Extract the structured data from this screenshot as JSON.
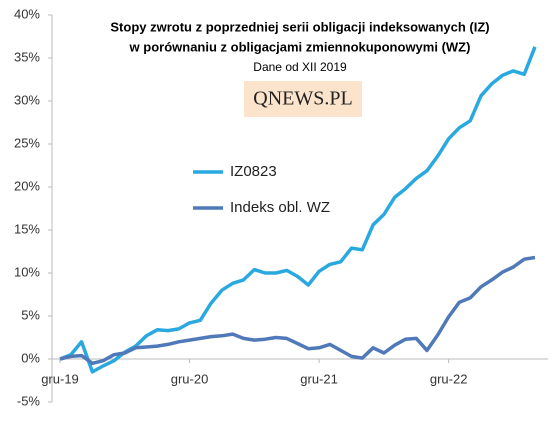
{
  "chart_data": {
    "type": "line",
    "title": [
      "Stopy zwrotu z poprzedniej serii obligacji indeksowanych (IZ)",
      "w porównaniu z obligacjami zmiennokuponowymi (WZ)"
    ],
    "subtitle": "Dane od XII 2019",
    "logo": "QNEWS.PL",
    "categories": [
      "gru-19",
      null,
      null,
      null,
      null,
      null,
      null,
      null,
      null,
      null,
      null,
      null,
      "gru-20",
      null,
      null,
      null,
      null,
      null,
      null,
      null,
      null,
      null,
      null,
      null,
      "gru-21",
      null,
      null,
      null,
      null,
      null,
      null,
      null,
      null,
      null,
      null,
      null,
      "gru-22",
      null,
      null,
      null,
      null,
      null,
      null,
      null,
      null
    ],
    "series": [
      {
        "name": "IZ0823",
        "color": "#29a9e0",
        "values": [
          0,
          0.5,
          2.0,
          -1.5,
          -0.8,
          -0.2,
          0.8,
          1.5,
          2.7,
          3.4,
          3.3,
          3.5,
          4.2,
          4.5,
          6.5,
          8.0,
          8.8,
          9.2,
          10.4,
          10.0,
          10.0,
          10.3,
          9.6,
          8.6,
          10.2,
          11.0,
          11.3,
          12.9,
          12.7,
          15.6,
          16.8,
          18.8,
          19.8,
          21.0,
          21.9,
          23.6,
          25.6,
          26.9,
          27.7,
          30.6,
          32.0,
          33.0,
          33.5,
          33.1,
          36.3
        ]
      },
      {
        "name": "Indeks obl. WZ",
        "color": "#4f79b8",
        "values": [
          0,
          0.3,
          0.4,
          -0.5,
          -0.2,
          0.5,
          0.7,
          1.3,
          1.4,
          1.5,
          1.7,
          2.0,
          2.2,
          2.4,
          2.6,
          2.7,
          2.9,
          2.4,
          2.2,
          2.3,
          2.5,
          2.4,
          1.8,
          1.2,
          1.3,
          1.7,
          1.0,
          0.3,
          0.1,
          1.3,
          0.7,
          1.6,
          2.3,
          2.4,
          1.0,
          2.8,
          4.9,
          6.6,
          7.1,
          8.4,
          9.2,
          10.1,
          10.7,
          11.6,
          11.8
        ]
      }
    ],
    "ylim": [
      -5,
      40
    ],
    "yticks": [
      {
        "value": -5,
        "label": "-5%"
      },
      {
        "value": 0,
        "label": "0%"
      },
      {
        "value": 5,
        "label": "5%"
      },
      {
        "value": 10,
        "label": "10%"
      },
      {
        "value": 15,
        "label": "15%"
      },
      {
        "value": 20,
        "label": "20%"
      },
      {
        "value": 25,
        "label": "25%"
      },
      {
        "value": 30,
        "label": "30%"
      },
      {
        "value": 35,
        "label": "35%"
      },
      {
        "value": 40,
        "label": "40%"
      }
    ],
    "grid": false
  }
}
